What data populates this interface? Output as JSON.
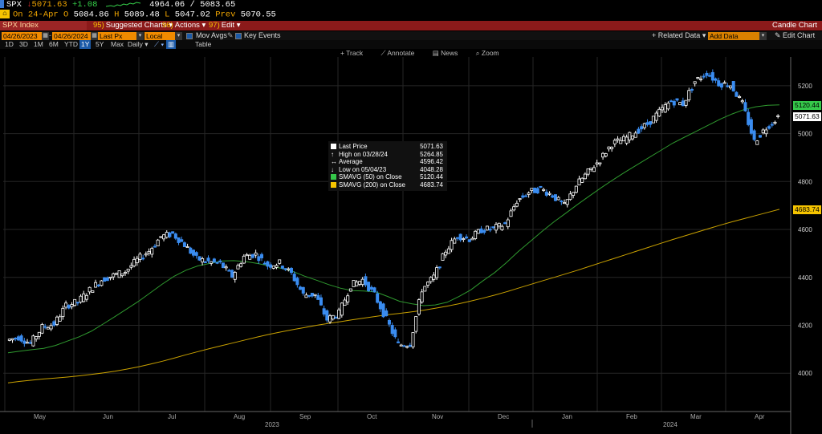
{
  "quote": {
    "ticker": "SPX",
    "last": "5071.63",
    "change": "+1.08",
    "range_low": "4964.06",
    "range_high": "5083.65",
    "on_label": "On",
    "date": "24-Apr",
    "open_label": "O",
    "open": "5084.86",
    "high_label": "H",
    "high": "5089.48",
    "low_label": "L",
    "low": "5047.02",
    "prev_label": "Prev",
    "prev": "5070.55"
  },
  "menu": {
    "security": "SPX Index",
    "suggested": {
      "num": "95)",
      "label": "Suggested Charts"
    },
    "actions": {
      "num": "96)",
      "label": "Actions"
    },
    "edit": {
      "num": "97)",
      "label": "Edit"
    },
    "title": "Candle Chart"
  },
  "controls": {
    "start_date": "04/26/2023",
    "end_date": "04/26/2024",
    "price_field": "Last Px",
    "currency": "Local CCY",
    "mov_avgs": "Mov Avgs",
    "key_events": "Key Events",
    "related_data": "Related Data",
    "add_data": "Add Data",
    "edit_chart": "Edit Chart"
  },
  "ranges": [
    "1D",
    "3D",
    "1M",
    "6M",
    "YTD",
    "1Y",
    "5Y",
    "Max",
    "Daily",
    "Table"
  ],
  "active_range": "1Y",
  "tools": [
    "Track",
    "Annotate",
    "News",
    "Zoom"
  ],
  "legend": [
    {
      "label": "Last Price",
      "value": "5071.63"
    },
    {
      "label": "High on 03/28/24",
      "value": "5264.85"
    },
    {
      "label": "Average",
      "value": "4596.42"
    },
    {
      "label": "Low on 05/04/23",
      "value": "4048.28"
    },
    {
      "label": "SMAVG (50)  on Close",
      "value": "5120.44"
    },
    {
      "label": "SMAVG (200)  on Close",
      "value": "4683.74"
    }
  ],
  "price_tags": {
    "sma50": "5120.44",
    "last": "5071.63",
    "sma200": "4683.74"
  },
  "colors": {
    "up": "#ffffff",
    "down": "#3a8cf0",
    "sma50": "#2f9a2f",
    "sma200": "#c9a100",
    "last_tag": "#ffffff",
    "sma50_tag": "#35c84a",
    "sma200_tag": "#f5c400"
  },
  "chart_data": {
    "type": "candlestick",
    "title": "",
    "ylim": [
      3840,
      5320
    ],
    "y_ticks": [
      4000,
      4200,
      4400,
      4600,
      4800,
      5000,
      5200
    ],
    "x_months": [
      "May",
      "Jun",
      "Jul",
      "Aug",
      "Sep",
      "Oct",
      "Nov",
      "Dec",
      "Jan",
      "Feb",
      "Mar",
      "Apr"
    ],
    "x_years": [
      "2023",
      "2024"
    ],
    "close_weekly": [
      4137,
      4151,
      4124,
      4192,
      4205,
      4282,
      4298,
      4347,
      4390,
      4408,
      4425,
      4473,
      4510,
      4570,
      4582,
      4536,
      4478,
      4465,
      4457,
      4405,
      4488,
      4497,
      4450,
      4460,
      4415,
      4328,
      4327,
      4224,
      4250,
      4367,
      4390,
      4327,
      4225,
      4118,
      4123,
      4350,
      4402,
      4512,
      4575,
      4560,
      4598,
      4604,
      4622,
      4719,
      4755,
      4770,
      4742,
      4698,
      4785,
      4840,
      4891,
      4958,
      4975,
      5007,
      5040,
      5090,
      5137,
      5124,
      5218,
      5254,
      5210,
      5204,
      5124,
      4967,
      5025,
      5071
    ],
    "sma50_weekly": [
      4085,
      4092,
      4098,
      4104,
      4116,
      4134,
      4152,
      4175,
      4205,
      4236,
      4268,
      4300,
      4336,
      4372,
      4405,
      4430,
      4448,
      4458,
      4468,
      4470,
      4466,
      4458,
      4448,
      4438,
      4425,
      4405,
      4388,
      4370,
      4355,
      4345,
      4343,
      4339,
      4320,
      4300,
      4290,
      4282,
      4285,
      4296,
      4320,
      4348,
      4385,
      4420,
      4462,
      4508,
      4550,
      4592,
      4632,
      4668,
      4705,
      4740,
      4775,
      4808,
      4840,
      4870,
      4900,
      4930,
      4960,
      4985,
      5010,
      5035,
      5060,
      5082,
      5100,
      5112,
      5118,
      5120
    ],
    "sma200_weekly": [
      3960,
      3966,
      3971,
      3976,
      3980,
      3984,
      3989,
      3995,
      4001,
      4008,
      4017,
      4027,
      4038,
      4050,
      4063,
      4077,
      4090,
      4103,
      4115,
      4127,
      4139,
      4151,
      4162,
      4172,
      4182,
      4191,
      4200,
      4208,
      4215,
      4223,
      4230,
      4237,
      4244,
      4250,
      4256,
      4263,
      4271,
      4280,
      4290,
      4301,
      4313,
      4326,
      4340,
      4355,
      4370,
      4385,
      4400,
      4415,
      4430,
      4446,
      4462,
      4478,
      4494,
      4510,
      4526,
      4542,
      4558,
      4573,
      4588,
      4603,
      4618,
      4632,
      4645,
      4658,
      4671,
      4684
    ]
  }
}
